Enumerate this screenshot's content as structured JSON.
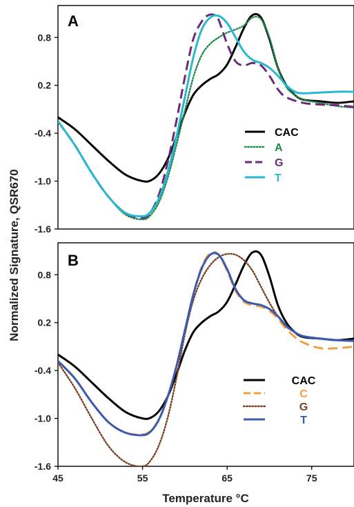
{
  "figure": {
    "ylabel": "Normalized Signature, QSR670",
    "xlabel": "Temperature  °C"
  },
  "chart_data": [
    {
      "type": "line",
      "panel_label": "A",
      "xlim": [
        45,
        80
      ],
      "ylim": [
        -1.6,
        1.2
      ],
      "y_ticks": [
        -1.6,
        -1.0,
        -0.4,
        0.2,
        0.8
      ],
      "series": [
        {
          "name": "CAC",
          "color": "#000000",
          "dash": "solid",
          "x": [
            45,
            47,
            49,
            51,
            53,
            55,
            56,
            57,
            58,
            59,
            60,
            61,
            62,
            63,
            64,
            65,
            66,
            67,
            68,
            69,
            70,
            71,
            72,
            73,
            74,
            76,
            78,
            80
          ],
          "y": [
            -0.2,
            -0.35,
            -0.55,
            -0.75,
            -0.92,
            -1.0,
            -0.99,
            -0.9,
            -0.72,
            -0.45,
            -0.15,
            0.08,
            0.2,
            0.28,
            0.34,
            0.46,
            0.68,
            0.92,
            1.08,
            1.05,
            0.78,
            0.42,
            0.2,
            0.08,
            0.02,
            0.0,
            -0.02,
            0.0
          ]
        },
        {
          "name": "A",
          "color": "#1e8a4a",
          "dash": "dotted",
          "x": [
            45,
            47,
            49,
            51,
            53,
            55,
            56,
            57,
            58,
            59,
            60,
            61,
            62,
            63,
            64,
            65,
            66,
            67,
            68,
            69,
            70,
            71,
            72,
            73,
            74,
            76,
            78,
            80
          ],
          "y": [
            -0.25,
            -0.55,
            -0.9,
            -1.2,
            -1.42,
            -1.48,
            -1.42,
            -1.25,
            -0.95,
            -0.55,
            -0.12,
            0.3,
            0.58,
            0.72,
            0.8,
            0.86,
            0.9,
            0.95,
            1.05,
            1.03,
            0.8,
            0.42,
            0.18,
            0.08,
            0.02,
            -0.02,
            -0.06,
            -0.08
          ]
        },
        {
          "name": "G",
          "color": "#6a2a7a",
          "dash": "dashed",
          "x": [
            45,
            47,
            49,
            51,
            53,
            55,
            56,
            57,
            58,
            59,
            60,
            61,
            62,
            62.8,
            63.5,
            64,
            65,
            66,
            67,
            68,
            69,
            70,
            71,
            72,
            74,
            76,
            78,
            80
          ],
          "y": [
            -0.25,
            -0.55,
            -0.9,
            -1.2,
            -1.4,
            -1.46,
            -1.38,
            -1.15,
            -0.75,
            -0.25,
            0.3,
            0.78,
            1.0,
            1.08,
            1.08,
            1.02,
            0.72,
            0.5,
            0.45,
            0.48,
            0.45,
            0.32,
            0.15,
            0.05,
            -0.02,
            -0.04,
            -0.05,
            -0.07
          ]
        },
        {
          "name": "T",
          "color": "#29b8d0",
          "dash": "solid",
          "x": [
            45,
            47,
            49,
            51,
            53,
            55,
            56,
            57,
            58,
            59,
            60,
            61,
            62,
            63,
            64,
            65,
            66,
            67,
            68,
            69,
            70,
            71,
            72,
            73,
            74,
            76,
            78,
            80
          ],
          "y": [
            -0.25,
            -0.55,
            -0.9,
            -1.2,
            -1.4,
            -1.44,
            -1.38,
            -1.2,
            -0.88,
            -0.45,
            0.05,
            0.55,
            0.9,
            1.05,
            1.07,
            0.98,
            0.8,
            0.62,
            0.52,
            0.48,
            0.42,
            0.32,
            0.2,
            0.12,
            0.1,
            0.11,
            0.12,
            0.12
          ]
        }
      ]
    },
    {
      "type": "line",
      "panel_label": "B",
      "xlim": [
        45,
        80
      ],
      "ylim": [
        -1.6,
        1.2
      ],
      "x_ticks": [
        45,
        55,
        65,
        75
      ],
      "y_ticks": [
        -1.6,
        -1.0,
        -0.4,
        0.2,
        0.8
      ],
      "series": [
        {
          "name": "CAC",
          "color": "#000000",
          "dash": "solid",
          "x": [
            45,
            47,
            49,
            51,
            53,
            55,
            56,
            57,
            58,
            59,
            60,
            61,
            62,
            63,
            64,
            65,
            66,
            67,
            68,
            69,
            70,
            71,
            72,
            73,
            74,
            76,
            78,
            80
          ],
          "y": [
            -0.2,
            -0.35,
            -0.55,
            -0.75,
            -0.92,
            -1.0,
            -0.99,
            -0.9,
            -0.72,
            -0.45,
            -0.15,
            0.08,
            0.2,
            0.28,
            0.34,
            0.46,
            0.68,
            0.92,
            1.08,
            1.05,
            0.78,
            0.42,
            0.2,
            0.08,
            0.02,
            0.0,
            -0.02,
            0.0
          ]
        },
        {
          "name": "C",
          "color": "#f0a040",
          "dash": "dashed",
          "x": [
            45,
            47,
            49,
            51,
            53,
            55,
            56,
            57,
            58,
            59,
            60,
            61,
            62,
            63,
            64,
            65,
            66,
            67,
            68,
            69,
            70,
            71,
            72,
            73,
            74,
            76,
            78,
            80
          ],
          "y": [
            -0.28,
            -0.5,
            -0.8,
            -1.05,
            -1.18,
            -1.2,
            -1.15,
            -1.0,
            -0.72,
            -0.35,
            0.1,
            0.55,
            0.9,
            1.07,
            1.05,
            0.85,
            0.6,
            0.46,
            0.42,
            0.4,
            0.35,
            0.25,
            0.12,
            0.02,
            -0.05,
            -0.12,
            -0.12,
            -0.1
          ]
        },
        {
          "name": "G",
          "color": "#7a4020",
          "dash": "dotted",
          "x": [
            45,
            47,
            49,
            51,
            53,
            55,
            56,
            57,
            58,
            59,
            60,
            61,
            62,
            63,
            64,
            65,
            66,
            67,
            68,
            69,
            70,
            71,
            72,
            73,
            74,
            76,
            78,
            80
          ],
          "y": [
            -0.3,
            -0.62,
            -1.0,
            -1.35,
            -1.55,
            -1.6,
            -1.52,
            -1.32,
            -0.98,
            -0.5,
            0.05,
            0.48,
            0.75,
            0.92,
            1.02,
            1.06,
            1.05,
            0.98,
            0.85,
            0.65,
            0.45,
            0.28,
            0.15,
            0.08,
            0.03,
            0.0,
            -0.02,
            -0.03
          ]
        },
        {
          "name": "T",
          "color": "#3a5ab0",
          "dash": "solid",
          "x": [
            45,
            47,
            49,
            51,
            53,
            55,
            56,
            57,
            58,
            59,
            60,
            61,
            62,
            63,
            64,
            65,
            66,
            67,
            68,
            69,
            70,
            71,
            72,
            73,
            74,
            76,
            78,
            80
          ],
          "y": [
            -0.28,
            -0.5,
            -0.8,
            -1.05,
            -1.18,
            -1.21,
            -1.16,
            -1.0,
            -0.72,
            -0.35,
            0.1,
            0.55,
            0.88,
            1.05,
            1.05,
            0.87,
            0.62,
            0.48,
            0.44,
            0.42,
            0.37,
            0.28,
            0.16,
            0.08,
            0.03,
            0.0,
            -0.02,
            -0.03
          ]
        }
      ]
    }
  ]
}
